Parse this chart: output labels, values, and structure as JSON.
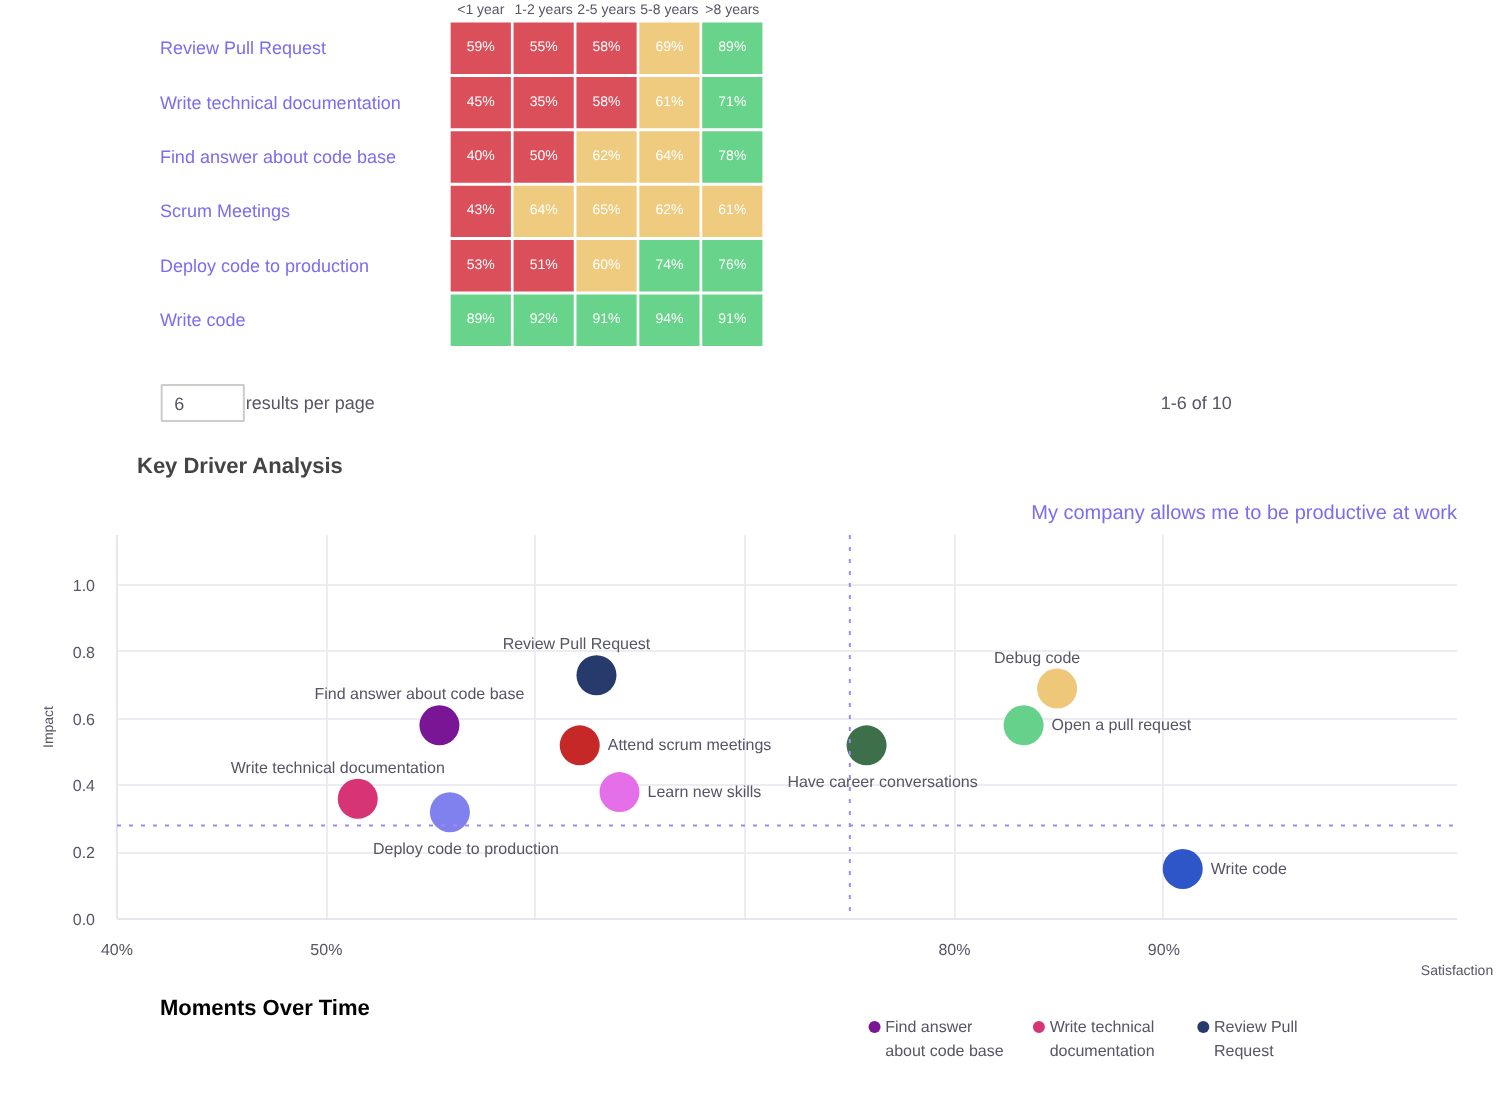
{
  "chart_data": [
    {
      "type": "heatmap",
      "categories": [
        "<1 year",
        "1-2 years",
        "2-5 years",
        "5-8 years",
        ">8 years"
      ],
      "y_categories": [
        "Review Pull Request",
        "Write technical documentation",
        "Find answer about code base",
        "Scrum Meetings",
        "Deploy code to production",
        "Write code"
      ],
      "cells": [
        [
          59,
          55,
          58,
          69,
          89
        ],
        [
          45,
          35,
          58,
          61,
          71
        ],
        [
          40,
          50,
          62,
          64,
          78
        ],
        [
          43,
          64,
          65,
          62,
          61
        ],
        [
          53,
          51,
          60,
          74,
          76
        ],
        [
          89,
          92,
          91,
          94,
          91
        ]
      ],
      "cell_labels": [
        [
          "59%",
          "55%",
          "58%",
          "69%",
          "89%"
        ],
        [
          "45%",
          "35%",
          "58%",
          "61%",
          "71%"
        ],
        [
          "40%",
          "50%",
          "62%",
          "64%",
          "78%"
        ],
        [
          "43%",
          "64%",
          "65%",
          "62%",
          "61%"
        ],
        [
          "53%",
          "51%",
          "60%",
          "74%",
          "76%"
        ],
        [
          "89%",
          "92%",
          "91%",
          "94%",
          "91%"
        ]
      ],
      "colors": [
        [
          "#db4f5a",
          "#db4f5a",
          "#db4f5a",
          "#efcb80",
          "#68d38b"
        ],
        [
          "#db4f5a",
          "#db4f5a",
          "#db4f5a",
          "#efcb80",
          "#68d38b"
        ],
        [
          "#db4f5a",
          "#db4f5a",
          "#efcb80",
          "#efcb80",
          "#68d38b"
        ],
        [
          "#db4f5a",
          "#efcb80",
          "#efcb80",
          "#efcb80",
          "#efcb80"
        ],
        [
          "#db4f5a",
          "#db4f5a",
          "#efcb80",
          "#68d38b",
          "#68d38b"
        ],
        [
          "#68d38b",
          "#68d38b",
          "#68d38b",
          "#68d38b",
          "#68d38b"
        ]
      ],
      "annotations": [
        "6",
        "results per page",
        "1-6 of 10"
      ]
    },
    {
      "type": "scatter",
      "title": "Key Driver Analysis",
      "subtitle": "My company allows me to be productive at work",
      "xlabel": "Satisfaction",
      "ylabel": "Impact",
      "series": [
        {
          "name": "Find answer about code base",
          "color": "#7a1696",
          "x": [
            55.4
          ],
          "values": [
            0.58
          ]
        },
        {
          "name": "Review Pull Request",
          "color": "#263a6b",
          "x": [
            62.9
          ],
          "values": [
            0.73
          ]
        },
        {
          "name": "Attend scrum meetings",
          "color": "#c62828",
          "x": [
            62.1
          ],
          "values": [
            0.52
          ]
        },
        {
          "name": "Write technical documentation",
          "color": "#d63475",
          "x": [
            51.5
          ],
          "values": [
            0.36
          ]
        },
        {
          "name": "Deploy code to production",
          "color": "#8080ee",
          "x": [
            55.9
          ],
          "values": [
            0.32
          ]
        },
        {
          "name": "Learn new skills",
          "color": "#e46fe8",
          "x": [
            64.0
          ],
          "values": [
            0.38
          ]
        },
        {
          "name": "Have career conversations",
          "color": "#3d6f4b",
          "x": [
            75.8
          ],
          "values": [
            0.52
          ]
        },
        {
          "name": "Open a pull request",
          "color": "#66d18a",
          "x": [
            83.3
          ],
          "values": [
            0.58
          ]
        },
        {
          "name": "Debug code",
          "color": "#eec878",
          "x": [
            84.9
          ],
          "values": [
            0.69
          ]
        },
        {
          "name": "Write code",
          "color": "#2f56c9",
          "x": [
            90.9
          ],
          "values": [
            0.15
          ]
        }
      ],
      "xlim": [
        40,
        104
      ],
      "ylim": [
        0,
        1.15
      ],
      "xticks": [
        {
          "value": 40,
          "label": "40%"
        },
        {
          "value": 50,
          "label": "50%"
        },
        {
          "value": 60,
          "label": null
        },
        {
          "value": 70,
          "label": null
        },
        {
          "value": 80,
          "label": "80%"
        },
        {
          "value": 90,
          "label": "90%"
        }
      ],
      "yticks": [
        {
          "value": 0,
          "label": "0.0"
        },
        {
          "value": 0.2,
          "label": "0.2"
        },
        {
          "value": 0.4,
          "label": "0.4"
        },
        {
          "value": 0.6,
          "label": "0.6"
        },
        {
          "value": 0.8,
          "label": "0.8"
        },
        {
          "value": 1.0,
          "label": "1.0"
        }
      ],
      "ref_lines": [
        {
          "axis": "x",
          "value": 75,
          "color": "#9b8cf0",
          "line_style": "dotted"
        },
        {
          "axis": "y",
          "value": 0.28,
          "color": "#9b8cf0",
          "line_style": "dotted"
        }
      ],
      "grid": true,
      "marker": "circle"
    },
    {
      "type": "other",
      "title": "Moments Over Time",
      "series": [
        {
          "name": "Find answer about code base",
          "color": "#7a1696"
        },
        {
          "name": "Write technical documentation",
          "color": "#d63475"
        },
        {
          "name": "Review Pull Request",
          "color": "#263a6b"
        }
      ]
    }
  ]
}
